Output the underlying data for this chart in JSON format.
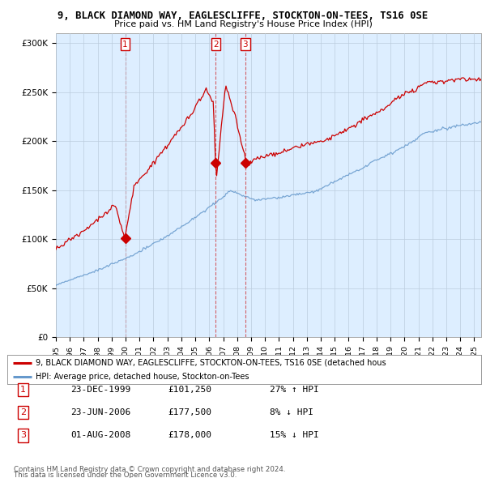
{
  "title": "9, BLACK DIAMOND WAY, EAGLESCLIFFE, STOCKTON-ON-TEES, TS16 0SE",
  "subtitle": "Price paid vs. HM Land Registry's House Price Index (HPI)",
  "legend_line1": "9, BLACK DIAMOND WAY, EAGLESCLIFFE, STOCKTON-ON-TEES, TS16 0SE (detached hous",
  "legend_line2": "HPI: Average price, detached house, Stockton-on-Tees",
  "transactions": [
    {
      "num": 1,
      "date": "23-DEC-1999",
      "price": 101250,
      "pct": "27%",
      "dir": "↑",
      "year": 1999.97
    },
    {
      "num": 2,
      "date": "23-JUN-2006",
      "price": 177500,
      "pct": "8%",
      "dir": "↓",
      "year": 2006.47
    },
    {
      "num": 3,
      "date": "01-AUG-2008",
      "price": 178000,
      "pct": "15%",
      "dir": "↓",
      "year": 2008.58
    }
  ],
  "table_rows": [
    {
      "num": "1",
      "date": "23-DEC-1999",
      "price": "£101,250",
      "info": "27% ↑ HPI"
    },
    {
      "num": "2",
      "date": "23-JUN-2006",
      "price": "£177,500",
      "info": "8% ↓ HPI"
    },
    {
      "num": "3",
      "date": "01-AUG-2008",
      "price": "£178,000",
      "info": "15% ↓ HPI"
    }
  ],
  "footer1": "Contains HM Land Registry data © Crown copyright and database right 2024.",
  "footer2": "This data is licensed under the Open Government Licence v3.0.",
  "red_color": "#cc0000",
  "blue_color": "#6699cc",
  "chart_bg": "#ddeeff",
  "bg_color": "#ffffff",
  "grid_color": "#bbccdd",
  "ylim": [
    0,
    310000
  ],
  "xlim_start": 1995.0,
  "xlim_end": 2025.5
}
